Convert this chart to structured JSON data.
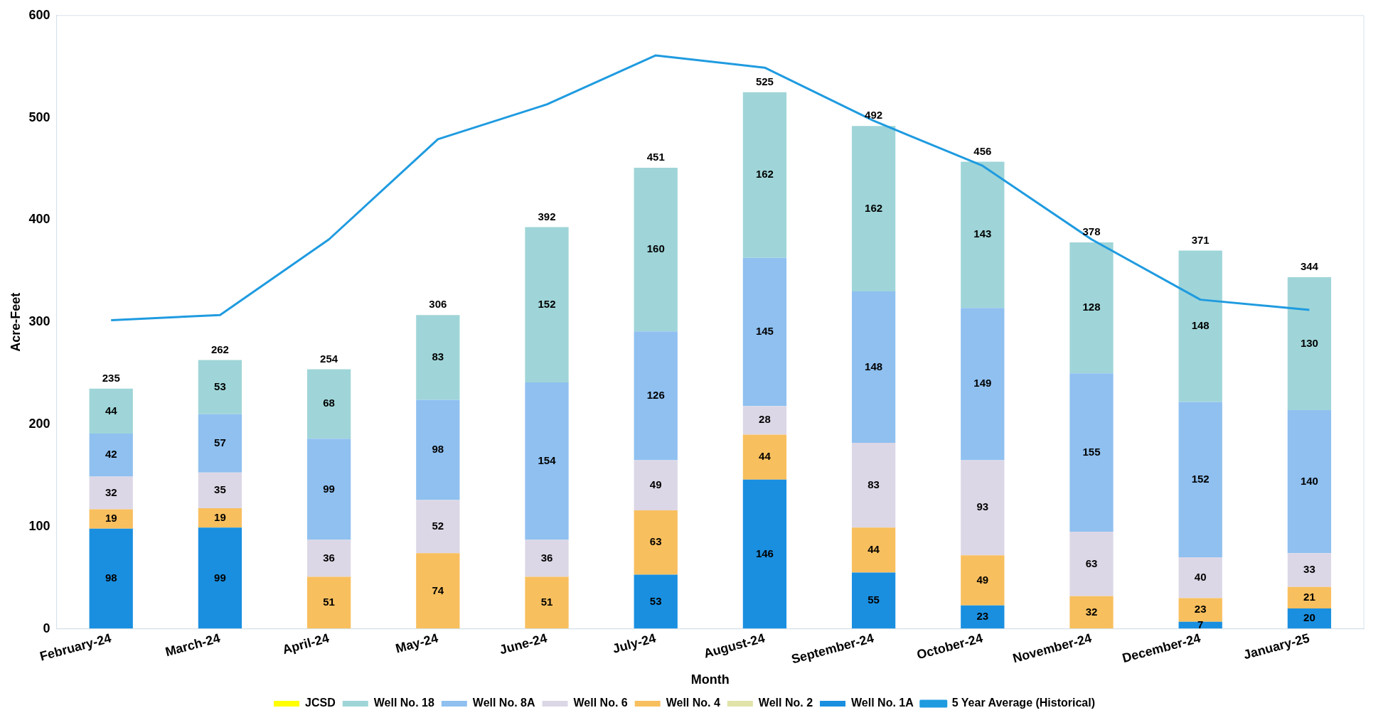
{
  "chart_data": {
    "type": "bar",
    "stacked": true,
    "xlabel": "Month",
    "ylabel": "Acre-Feet",
    "categories": [
      "February-24",
      "March-24",
      "April-24",
      "May-24",
      "June-24",
      "July-24",
      "August-24",
      "September-24",
      "October-24",
      "November-24",
      "December-24",
      "January-25"
    ],
    "ylim": [
      0,
      600
    ],
    "yticks": [
      0,
      100,
      200,
      300,
      400,
      500,
      600
    ],
    "grid": false,
    "legend": "bottom",
    "totals": [
      "235",
      "262",
      "254",
      "306",
      "392",
      "451",
      "525",
      "492",
      "456",
      "378",
      "371",
      "344"
    ],
    "series": [
      {
        "name": "Well No. 1A",
        "color": "#1a8fe0",
        "values": [
          98,
          99,
          null,
          null,
          null,
          53,
          146,
          55,
          23,
          null,
          7,
          20
        ],
        "value_labels": [
          "98",
          "99",
          null,
          null,
          null,
          "53",
          "146",
          "55",
          "23",
          null,
          "7",
          "20"
        ]
      },
      {
        "name": "Well No. 2",
        "color": "#e1e3a8",
        "values": [
          null,
          null,
          null,
          null,
          null,
          null,
          null,
          null,
          null,
          null,
          null,
          null
        ]
      },
      {
        "name": "Well No. 4",
        "color": "#f8bf5e",
        "values": [
          19,
          19,
          51,
          74,
          51,
          63,
          44,
          44,
          49,
          32,
          23,
          21
        ],
        "value_labels": [
          "19",
          "19",
          "51",
          "74",
          "51",
          "63",
          "44",
          "44",
          "49",
          "32",
          "23",
          "21"
        ]
      },
      {
        "name": "Well No. 6",
        "color": "#dcd7e6",
        "values": [
          32,
          35,
          36,
          52,
          36,
          49,
          28,
          83,
          93,
          63,
          40,
          33
        ],
        "value_labels": [
          "32",
          "35",
          "36",
          "52",
          "36",
          "49",
          "28",
          "83",
          "93",
          "63",
          "40",
          "33"
        ]
      },
      {
        "name": "Well No. 8A",
        "color": "#8fc0f0",
        "values": [
          42,
          57,
          99,
          98,
          154,
          126,
          145,
          148,
          149,
          155,
          152,
          140
        ],
        "value_labels": [
          "42",
          "57",
          "99",
          "98",
          "154",
          "126",
          "145",
          "148",
          "149",
          "155",
          "152",
          "140"
        ]
      },
      {
        "name": "Well No. 18",
        "color": "#9fd5d8",
        "values": [
          44,
          53,
          68,
          83,
          152,
          160,
          162,
          162,
          143,
          128,
          148,
          130
        ],
        "value_labels": [
          "44",
          "53",
          "68",
          "83",
          "152",
          "160",
          "162",
          "162",
          "143",
          "128",
          "148",
          "130"
        ]
      },
      {
        "name": "JCSD",
        "color": "#ffff00",
        "values": [
          null,
          null,
          null,
          null,
          null,
          null,
          null,
          null,
          null,
          null,
          null,
          null
        ]
      },
      {
        "name": "5 Year Average (Historical)",
        "type": "line",
        "color": "#1f9be0",
        "marker": "none",
        "values": [
          302,
          307,
          381,
          479,
          513,
          561,
          549,
          497,
          453,
          381,
          322,
          312
        ]
      }
    ]
  }
}
